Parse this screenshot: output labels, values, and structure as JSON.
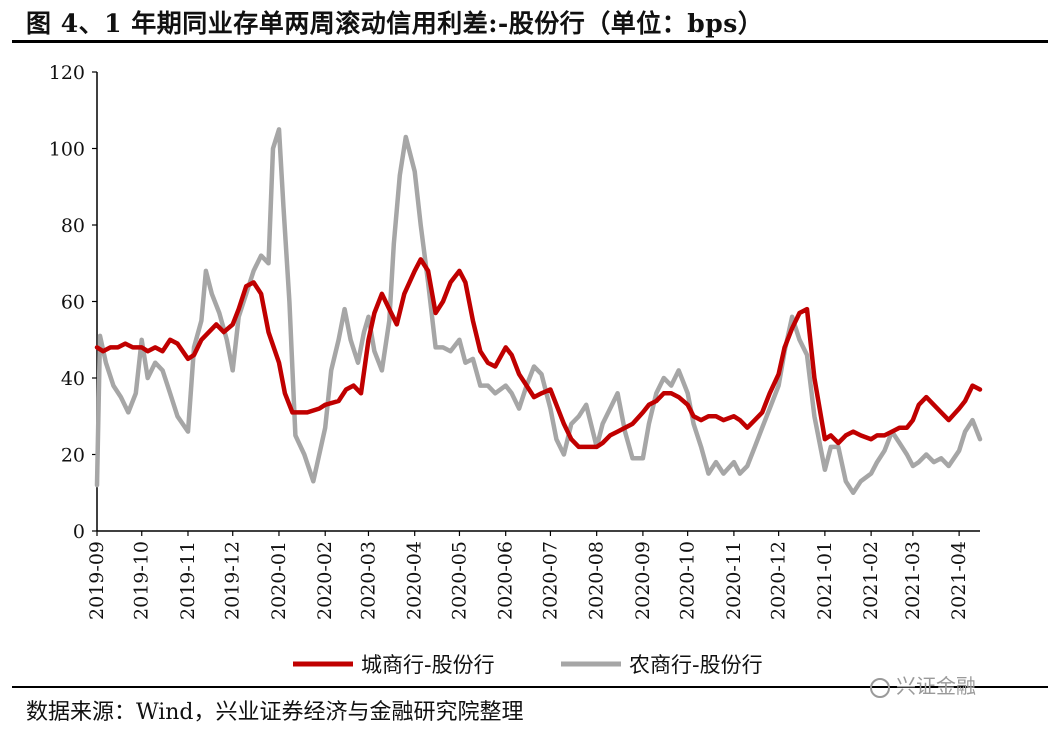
{
  "title": "图 4、1 年期同业存单两周滚动信用利差:-股份行（单位：bps）",
  "source": "数据来源：Wind，兴业证券经济与金融研究院整理",
  "watermark": "兴证金融",
  "chart_data": {
    "type": "line",
    "title": "图 4、1 年期同业存单两周滚动信用利差:-股份行（单位：bps）",
    "ylim": [
      0,
      120
    ],
    "yticks": [
      0,
      20,
      40,
      60,
      80,
      100,
      120
    ],
    "xticks": [
      "2019-09",
      "2019-10",
      "2019-11",
      "2019-12",
      "2020-01",
      "2020-02",
      "2020-03",
      "2020-04",
      "2020-05",
      "2020-06",
      "2020-07",
      "2020-08",
      "2020-09",
      "2020-10",
      "2020-11",
      "2020-12",
      "2021-01",
      "2021-02",
      "2021-03",
      "2021-04"
    ],
    "xstart": "2019-09-01",
    "xend": "2021-04-15",
    "grid": false,
    "legend_position": "bottom",
    "series": [
      {
        "name": "城商行-股份行",
        "color": "#c00000",
        "points": [
          [
            "2019-09-01",
            48
          ],
          [
            "2019-09-05",
            47
          ],
          [
            "2019-09-10",
            48
          ],
          [
            "2019-09-15",
            48
          ],
          [
            "2019-09-20",
            49
          ],
          [
            "2019-09-25",
            48
          ],
          [
            "2019-10-01",
            48
          ],
          [
            "2019-10-05",
            47
          ],
          [
            "2019-10-10",
            48
          ],
          [
            "2019-10-15",
            47
          ],
          [
            "2019-10-20",
            50
          ],
          [
            "2019-10-25",
            49
          ],
          [
            "2019-11-01",
            45
          ],
          [
            "2019-11-05",
            46
          ],
          [
            "2019-11-10",
            50
          ],
          [
            "2019-11-15",
            52
          ],
          [
            "2019-11-20",
            54
          ],
          [
            "2019-11-25",
            52
          ],
          [
            "2019-12-01",
            54
          ],
          [
            "2019-12-05",
            58
          ],
          [
            "2019-12-10",
            64
          ],
          [
            "2019-12-15",
            65
          ],
          [
            "2019-12-20",
            62
          ],
          [
            "2019-12-25",
            52
          ],
          [
            "2020-01-01",
            44
          ],
          [
            "2020-01-05",
            36
          ],
          [
            "2020-01-10",
            31
          ],
          [
            "2020-01-20",
            31
          ],
          [
            "2020-01-28",
            32
          ],
          [
            "2020-02-01",
            33
          ],
          [
            "2020-02-10",
            34
          ],
          [
            "2020-02-15",
            37
          ],
          [
            "2020-02-20",
            38
          ],
          [
            "2020-02-25",
            36
          ],
          [
            "2020-03-01",
            50
          ],
          [
            "2020-03-05",
            57
          ],
          [
            "2020-03-10",
            62
          ],
          [
            "2020-03-15",
            58
          ],
          [
            "2020-03-20",
            54
          ],
          [
            "2020-03-25",
            62
          ],
          [
            "2020-04-01",
            68
          ],
          [
            "2020-04-05",
            71
          ],
          [
            "2020-04-10",
            68
          ],
          [
            "2020-04-15",
            57
          ],
          [
            "2020-04-20",
            60
          ],
          [
            "2020-04-25",
            65
          ],
          [
            "2020-05-01",
            68
          ],
          [
            "2020-05-05",
            65
          ],
          [
            "2020-05-10",
            55
          ],
          [
            "2020-05-15",
            47
          ],
          [
            "2020-05-20",
            44
          ],
          [
            "2020-05-25",
            43
          ],
          [
            "2020-06-01",
            48
          ],
          [
            "2020-06-05",
            46
          ],
          [
            "2020-06-10",
            41
          ],
          [
            "2020-06-15",
            38
          ],
          [
            "2020-06-20",
            35
          ],
          [
            "2020-06-25",
            36
          ],
          [
            "2020-07-01",
            37
          ],
          [
            "2020-07-05",
            33
          ],
          [
            "2020-07-10",
            28
          ],
          [
            "2020-07-15",
            24
          ],
          [
            "2020-07-20",
            22
          ],
          [
            "2020-07-25",
            22
          ],
          [
            "2020-08-01",
            22
          ],
          [
            "2020-08-05",
            23
          ],
          [
            "2020-08-10",
            25
          ],
          [
            "2020-08-15",
            26
          ],
          [
            "2020-08-20",
            27
          ],
          [
            "2020-08-25",
            28
          ],
          [
            "2020-09-01",
            31
          ],
          [
            "2020-09-05",
            33
          ],
          [
            "2020-09-10",
            34
          ],
          [
            "2020-09-15",
            36
          ],
          [
            "2020-09-20",
            36
          ],
          [
            "2020-09-25",
            35
          ],
          [
            "2020-10-01",
            33
          ],
          [
            "2020-10-05",
            30
          ],
          [
            "2020-10-10",
            29
          ],
          [
            "2020-10-15",
            30
          ],
          [
            "2020-10-20",
            30
          ],
          [
            "2020-10-25",
            29
          ],
          [
            "2020-11-01",
            30
          ],
          [
            "2020-11-05",
            29
          ],
          [
            "2020-11-10",
            27
          ],
          [
            "2020-11-15",
            29
          ],
          [
            "2020-11-20",
            31
          ],
          [
            "2020-11-25",
            36
          ],
          [
            "2020-12-01",
            41
          ],
          [
            "2020-12-05",
            48
          ],
          [
            "2020-12-10",
            53
          ],
          [
            "2020-12-15",
            57
          ],
          [
            "2020-12-20",
            58
          ],
          [
            "2020-12-25",
            40
          ],
          [
            "2021-01-01",
            24
          ],
          [
            "2021-01-05",
            25
          ],
          [
            "2021-01-10",
            23
          ],
          [
            "2021-01-15",
            25
          ],
          [
            "2021-01-20",
            26
          ],
          [
            "2021-01-25",
            25
          ],
          [
            "2021-02-01",
            24
          ],
          [
            "2021-02-05",
            25
          ],
          [
            "2021-02-10",
            25
          ],
          [
            "2021-02-15",
            26
          ],
          [
            "2021-02-20",
            27
          ],
          [
            "2021-02-25",
            27
          ],
          [
            "2021-03-01",
            29
          ],
          [
            "2021-03-05",
            33
          ],
          [
            "2021-03-10",
            35
          ],
          [
            "2021-03-15",
            33
          ],
          [
            "2021-03-20",
            31
          ],
          [
            "2021-03-25",
            29
          ],
          [
            "2021-04-01",
            32
          ],
          [
            "2021-04-05",
            34
          ],
          [
            "2021-04-10",
            38
          ],
          [
            "2021-04-15",
            37
          ]
        ]
      },
      {
        "name": "农商行-股份行",
        "color": "#a6a6a6",
        "points": [
          [
            "2019-09-01",
            12
          ],
          [
            "2019-09-03",
            51
          ],
          [
            "2019-09-07",
            44
          ],
          [
            "2019-09-12",
            38
          ],
          [
            "2019-09-17",
            35
          ],
          [
            "2019-09-22",
            31
          ],
          [
            "2019-09-27",
            36
          ],
          [
            "2019-10-01",
            50
          ],
          [
            "2019-10-05",
            40
          ],
          [
            "2019-10-10",
            44
          ],
          [
            "2019-10-15",
            42
          ],
          [
            "2019-10-20",
            36
          ],
          [
            "2019-10-25",
            30
          ],
          [
            "2019-11-01",
            26
          ],
          [
            "2019-11-05",
            48
          ],
          [
            "2019-11-10",
            55
          ],
          [
            "2019-11-13",
            68
          ],
          [
            "2019-11-17",
            62
          ],
          [
            "2019-11-22",
            57
          ],
          [
            "2019-11-27",
            50
          ],
          [
            "2019-12-01",
            42
          ],
          [
            "2019-12-05",
            56
          ],
          [
            "2019-12-10",
            62
          ],
          [
            "2019-12-15",
            68
          ],
          [
            "2019-12-20",
            72
          ],
          [
            "2019-12-25",
            70
          ],
          [
            "2019-12-28",
            100
          ],
          [
            "2020-01-01",
            105
          ],
          [
            "2020-01-04",
            85
          ],
          [
            "2020-01-08",
            60
          ],
          [
            "2020-01-12",
            25
          ],
          [
            "2020-01-18",
            20
          ],
          [
            "2020-01-24",
            13
          ],
          [
            "2020-02-01",
            27
          ],
          [
            "2020-02-05",
            42
          ],
          [
            "2020-02-10",
            50
          ],
          [
            "2020-02-14",
            58
          ],
          [
            "2020-02-18",
            50
          ],
          [
            "2020-02-23",
            44
          ],
          [
            "2020-02-27",
            52
          ],
          [
            "2020-03-01",
            56
          ],
          [
            "2020-03-05",
            47
          ],
          [
            "2020-03-10",
            42
          ],
          [
            "2020-03-15",
            55
          ],
          [
            "2020-03-18",
            75
          ],
          [
            "2020-03-22",
            93
          ],
          [
            "2020-03-26",
            103
          ],
          [
            "2020-04-01",
            94
          ],
          [
            "2020-04-05",
            80
          ],
          [
            "2020-04-10",
            65
          ],
          [
            "2020-04-15",
            48
          ],
          [
            "2020-04-20",
            48
          ],
          [
            "2020-04-25",
            47
          ],
          [
            "2020-05-01",
            50
          ],
          [
            "2020-05-05",
            44
          ],
          [
            "2020-05-10",
            45
          ],
          [
            "2020-05-15",
            38
          ],
          [
            "2020-05-20",
            38
          ],
          [
            "2020-05-25",
            36
          ],
          [
            "2020-06-01",
            38
          ],
          [
            "2020-06-05",
            36
          ],
          [
            "2020-06-10",
            32
          ],
          [
            "2020-06-15",
            38
          ],
          [
            "2020-06-20",
            43
          ],
          [
            "2020-06-25",
            41
          ],
          [
            "2020-07-01",
            32
          ],
          [
            "2020-07-05",
            24
          ],
          [
            "2020-07-10",
            20
          ],
          [
            "2020-07-15",
            28
          ],
          [
            "2020-07-20",
            30
          ],
          [
            "2020-07-25",
            33
          ],
          [
            "2020-08-01",
            22
          ],
          [
            "2020-08-05",
            28
          ],
          [
            "2020-08-10",
            32
          ],
          [
            "2020-08-15",
            36
          ],
          [
            "2020-08-20",
            26
          ],
          [
            "2020-08-25",
            19
          ],
          [
            "2020-09-01",
            19
          ],
          [
            "2020-09-05",
            28
          ],
          [
            "2020-09-10",
            36
          ],
          [
            "2020-09-15",
            40
          ],
          [
            "2020-09-20",
            38
          ],
          [
            "2020-09-25",
            42
          ],
          [
            "2020-10-01",
            36
          ],
          [
            "2020-10-05",
            28
          ],
          [
            "2020-10-10",
            22
          ],
          [
            "2020-10-15",
            15
          ],
          [
            "2020-10-20",
            18
          ],
          [
            "2020-10-25",
            15
          ],
          [
            "2020-11-01",
            18
          ],
          [
            "2020-11-05",
            15
          ],
          [
            "2020-11-10",
            17
          ],
          [
            "2020-11-15",
            22
          ],
          [
            "2020-11-20",
            27
          ],
          [
            "2020-11-25",
            32
          ],
          [
            "2020-12-01",
            38
          ],
          [
            "2020-12-05",
            47
          ],
          [
            "2020-12-10",
            56
          ],
          [
            "2020-12-15",
            50
          ],
          [
            "2020-12-20",
            46
          ],
          [
            "2020-12-25",
            30
          ],
          [
            "2021-01-01",
            16
          ],
          [
            "2021-01-05",
            22
          ],
          [
            "2021-01-10",
            22
          ],
          [
            "2021-01-15",
            13
          ],
          [
            "2021-01-20",
            10
          ],
          [
            "2021-01-25",
            13
          ],
          [
            "2021-02-01",
            15
          ],
          [
            "2021-02-05",
            18
          ],
          [
            "2021-02-10",
            21
          ],
          [
            "2021-02-15",
            26
          ],
          [
            "2021-02-20",
            23
          ],
          [
            "2021-02-25",
            20
          ],
          [
            "2021-03-01",
            17
          ],
          [
            "2021-03-05",
            18
          ],
          [
            "2021-03-10",
            20
          ],
          [
            "2021-03-15",
            18
          ],
          [
            "2021-03-20",
            19
          ],
          [
            "2021-03-25",
            17
          ],
          [
            "2021-04-01",
            21
          ],
          [
            "2021-04-05",
            26
          ],
          [
            "2021-04-10",
            29
          ],
          [
            "2021-04-15",
            24
          ]
        ]
      }
    ]
  }
}
